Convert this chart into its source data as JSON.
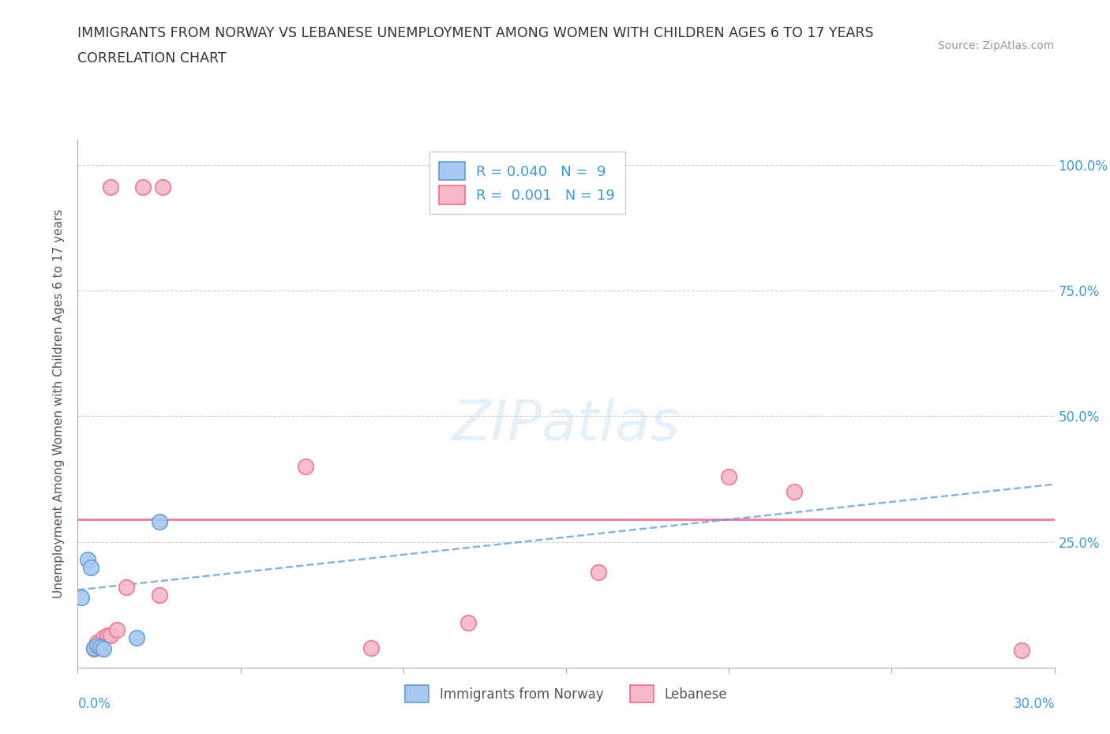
{
  "title_line1": "IMMIGRANTS FROM NORWAY VS LEBANESE UNEMPLOYMENT AMONG WOMEN WITH CHILDREN AGES 6 TO 17 YEARS",
  "title_line2": "CORRELATION CHART",
  "source_text": "Source: ZipAtlas.com",
  "ylabel": "Unemployment Among Women with Children Ages 6 to 17 years",
  "xlim": [
    0.0,
    0.3
  ],
  "ylim": [
    0.0,
    1.05
  ],
  "yticks": [
    0.0,
    0.25,
    0.5,
    0.75,
    1.0
  ],
  "ytick_labels": [
    "",
    "25.0%",
    "50.0%",
    "75.0%",
    "100.0%"
  ],
  "watermark": "ZIPatlas",
  "legend_norway_R": "0.040",
  "legend_norway_N": "9",
  "legend_lebanese_R": "0.001",
  "legend_lebanese_N": "19",
  "norway_color": "#a8c8f0",
  "norway_edge": "#6699cc",
  "lebanese_color": "#f4b8c8",
  "lebanese_edge": "#e87090",
  "trend_norway_color": "#6699cc",
  "trend_lebanese_color": "#e87090",
  "norway_x": [
    0.001,
    0.003,
    0.004,
    0.005,
    0.006,
    0.007,
    0.008,
    0.025,
    0.018
  ],
  "norway_y": [
    0.14,
    0.215,
    0.2,
    0.04,
    0.045,
    0.042,
    0.038,
    0.29,
    0.06
  ],
  "lebanese_x": [
    0.01,
    0.02,
    0.026,
    0.005,
    0.006,
    0.007,
    0.008,
    0.009,
    0.01,
    0.012,
    0.015,
    0.07,
    0.09,
    0.12,
    0.16,
    0.2,
    0.22,
    0.29,
    0.025
  ],
  "lebanese_y": [
    0.955,
    0.955,
    0.955,
    0.038,
    0.05,
    0.045,
    0.06,
    0.065,
    0.065,
    0.075,
    0.16,
    0.4,
    0.04,
    0.09,
    0.19,
    0.38,
    0.35,
    0.035,
    0.145
  ],
  "norway_trend_x": [
    0.0,
    0.3
  ],
  "norway_trend_y": [
    0.155,
    0.365
  ],
  "lebanese_trend_y": 0.295,
  "background_color": "#ffffff",
  "grid_color": "#cccccc",
  "title_color": "#333333",
  "tick_label_color": "#4499cc",
  "legend_text_color": "#4499cc",
  "ylabel_color": "#555555",
  "source_color": "#999999"
}
